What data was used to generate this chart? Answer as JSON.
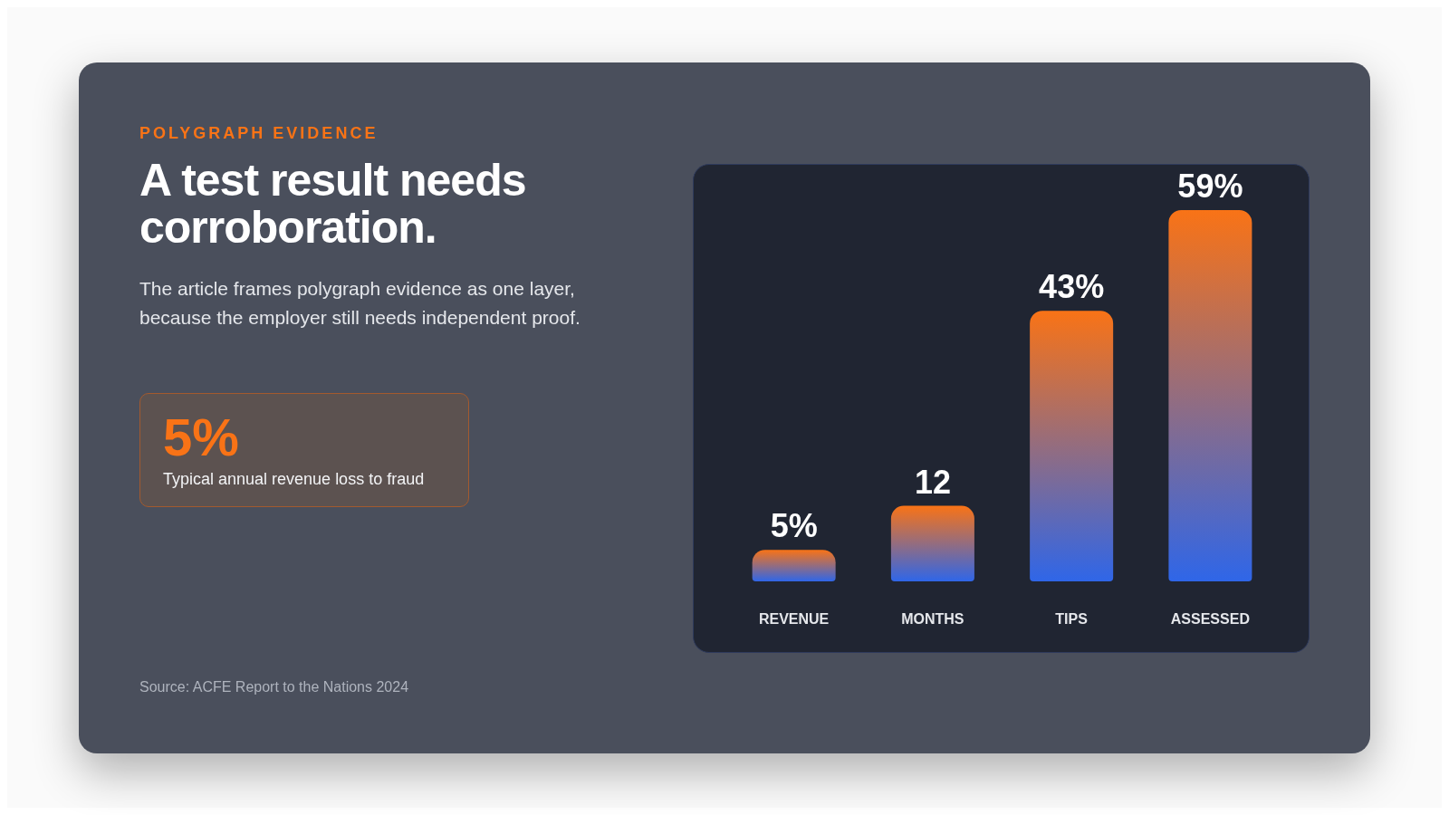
{
  "chart_data": {
    "type": "bar",
    "title": "A test result needs corroboration.",
    "subtitle": "The article frames polygraph evidence as one layer, because the employer still needs independent proof.",
    "annotations": [
      "POLYGRAPH EVIDENCE",
      "5%",
      "Typical annual revenue loss to fraud",
      "Source: ACFE Report to the Nations 2024"
    ],
    "categories": [
      "REVENUE",
      "MONTHS",
      "TIPS",
      "ASSESSED"
    ],
    "values": [
      5,
      12,
      43,
      59
    ],
    "value_labels": [
      "5%",
      "12",
      "43%",
      "59%"
    ],
    "color": "#f97316"
  }
}
